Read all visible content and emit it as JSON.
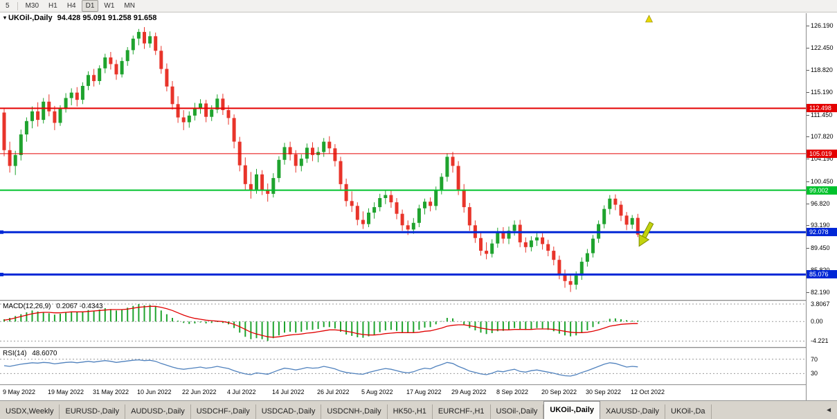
{
  "toolbar": {
    "timeframes": [
      "5",
      "M30",
      "H1",
      "H4",
      "D1",
      "W1",
      "MN"
    ],
    "active": "D1"
  },
  "chart_title": {
    "collapse_icon": "▾",
    "symbol": "UKOil-,Daily",
    "ohlc": "94.428 95.091 91.258 91.658"
  },
  "chart_data": {
    "type": "candlestick",
    "symbol": "UKOil-,Daily",
    "timeframe": "Daily",
    "price_range": [
      80.9,
      128.2
    ],
    "price_ticks": [
      "126.190",
      "122.450",
      "118.820",
      "115.190",
      "111.450",
      "107.820",
      "104.190",
      "100.450",
      "96.820",
      "93.190",
      "89.450",
      "85.820",
      "82.190"
    ],
    "date_ticks": [
      "9 May 2022",
      "19 May 2022",
      "31 May 2022",
      "10 Jun 2022",
      "22 Jun 2022",
      "4 Jul 2022",
      "14 Jul 2022",
      "26 Jul 2022",
      "5 Aug 2022",
      "17 Aug 2022",
      "29 Aug 2022",
      "8 Sep 2022",
      "20 Sep 2022",
      "30 Sep 2022",
      "12 Oct 2022"
    ],
    "date_tick_indices": [
      0,
      8,
      16,
      24,
      32,
      40,
      48,
      56,
      64,
      72,
      80,
      88,
      96,
      104,
      112
    ],
    "hlines": [
      {
        "price": 112.498,
        "label": "112.498",
        "color": "#e40000",
        "width": 2,
        "handle": false
      },
      {
        "price": 105.019,
        "label": "105.019",
        "color": "#e40000",
        "width": 1,
        "handle": false
      },
      {
        "price": 99.002,
        "label": "99.002",
        "color": "#00c22d",
        "width": 2,
        "handle": false
      },
      {
        "price": 92.078,
        "label": "92.078",
        "color": "#0027d6",
        "width": 3,
        "handle": true
      },
      {
        "price": 85.076,
        "label": "85.076",
        "color": "#0027d6",
        "width": 3,
        "handle": true
      }
    ],
    "colors": {
      "bull": "#1fa32e",
      "bear": "#e8342a",
      "macd_hist": "#1fa32e",
      "macd_signal": "#e00000",
      "rsi_line": "#4f81bd"
    },
    "annotations": {
      "up_arrow_color": "#e6d800",
      "down_arrow_color": "#c3d30e"
    },
    "candles": [
      [
        111.8,
        112.4,
        104.6,
        105.6
      ],
      [
        105.6,
        107.0,
        101.9,
        103.0
      ],
      [
        103.0,
        105.5,
        101.5,
        104.8
      ],
      [
        104.8,
        109.0,
        103.9,
        108.2
      ],
      [
        108.2,
        111.0,
        107.0,
        110.4
      ],
      [
        110.4,
        112.8,
        109.2,
        112.0
      ],
      [
        112.0,
        113.5,
        109.5,
        110.6
      ],
      [
        110.6,
        114.2,
        110.0,
        113.6
      ],
      [
        113.6,
        114.8,
        111.2,
        112.0
      ],
      [
        112.0,
        112.9,
        108.9,
        110.1
      ],
      [
        110.1,
        113.0,
        109.6,
        112.4
      ],
      [
        112.4,
        115.0,
        111.8,
        114.2
      ],
      [
        114.2,
        115.8,
        113.0,
        115.1
      ],
      [
        115.1,
        116.0,
        112.8,
        113.9
      ],
      [
        113.9,
        116.8,
        113.2,
        116.2
      ],
      [
        116.2,
        118.6,
        115.5,
        118.0
      ],
      [
        118.0,
        119.0,
        116.1,
        117.0
      ],
      [
        117.0,
        119.6,
        116.4,
        119.1
      ],
      [
        119.1,
        121.5,
        118.3,
        120.9
      ],
      [
        120.9,
        121.8,
        118.9,
        119.8
      ],
      [
        119.8,
        120.5,
        117.2,
        118.1
      ],
      [
        118.1,
        120.9,
        117.6,
        120.3
      ],
      [
        120.3,
        122.6,
        119.5,
        122.1
      ],
      [
        122.1,
        124.5,
        121.4,
        124.0
      ],
      [
        124.0,
        125.6,
        122.9,
        125.1
      ],
      [
        125.1,
        125.9,
        122.3,
        123.2
      ],
      [
        123.2,
        125.2,
        122.5,
        124.4
      ],
      [
        124.4,
        125.0,
        121.3,
        122.0
      ],
      [
        122.0,
        122.8,
        118.2,
        119.0
      ],
      [
        119.0,
        119.9,
        115.3,
        116.1
      ],
      [
        116.1,
        117.0,
        112.3,
        113.2
      ],
      [
        113.2,
        114.5,
        110.1,
        111.0
      ],
      [
        111.0,
        112.2,
        108.9,
        110.2
      ],
      [
        110.2,
        112.0,
        109.3,
        111.3
      ],
      [
        111.3,
        113.4,
        110.5,
        112.6
      ],
      [
        112.6,
        114.0,
        111.6,
        113.3
      ],
      [
        113.3,
        113.9,
        110.2,
        111.1
      ],
      [
        111.1,
        113.0,
        110.4,
        112.3
      ],
      [
        112.3,
        114.8,
        111.7,
        114.1
      ],
      [
        114.1,
        114.9,
        111.4,
        112.2
      ],
      [
        112.2,
        113.0,
        109.8,
        110.9
      ],
      [
        110.9,
        111.5,
        105.9,
        107.0
      ],
      [
        107.0,
        107.8,
        102.1,
        103.1
      ],
      [
        103.1,
        104.4,
        98.9,
        100.0
      ],
      [
        100.0,
        102.0,
        97.6,
        99.1
      ],
      [
        99.1,
        102.5,
        98.4,
        101.6
      ],
      [
        101.6,
        102.3,
        98.2,
        99.0
      ],
      [
        99.0,
        100.1,
        97.1,
        98.4
      ],
      [
        98.4,
        101.8,
        97.8,
        101.0
      ],
      [
        101.0,
        104.6,
        100.3,
        104.0
      ],
      [
        104.0,
        106.8,
        103.2,
        106.1
      ],
      [
        106.1,
        107.0,
        103.9,
        104.9
      ],
      [
        104.9,
        105.6,
        101.9,
        103.0
      ],
      [
        103.0,
        104.9,
        102.1,
        104.2
      ],
      [
        104.2,
        106.7,
        103.5,
        106.0
      ],
      [
        106.0,
        106.9,
        103.8,
        104.8
      ],
      [
        104.8,
        106.1,
        103.6,
        105.3
      ],
      [
        105.3,
        107.6,
        104.5,
        107.0
      ],
      [
        107.0,
        107.9,
        105.0,
        105.9
      ],
      [
        105.9,
        106.6,
        102.9,
        103.8
      ],
      [
        103.8,
        104.5,
        99.1,
        100.0
      ],
      [
        100.0,
        100.9,
        96.3,
        97.2
      ],
      [
        97.2,
        98.8,
        95.4,
        96.4
      ],
      [
        96.4,
        97.0,
        93.2,
        94.1
      ],
      [
        94.1,
        95.5,
        92.6,
        93.4
      ],
      [
        93.4,
        96.0,
        92.9,
        95.3
      ],
      [
        95.3,
        97.0,
        94.3,
        96.2
      ],
      [
        96.2,
        98.4,
        95.5,
        97.7
      ],
      [
        97.7,
        99.0,
        96.7,
        98.2
      ],
      [
        98.2,
        98.9,
        96.1,
        97.0
      ],
      [
        97.0,
        97.7,
        94.2,
        95.1
      ],
      [
        95.1,
        95.8,
        92.3,
        93.2
      ],
      [
        93.2,
        94.0,
        91.6,
        92.5
      ],
      [
        92.5,
        94.4,
        91.8,
        93.6
      ],
      [
        93.6,
        96.6,
        92.9,
        96.0
      ],
      [
        96.0,
        97.6,
        95.0,
        97.1
      ],
      [
        97.1,
        97.8,
        95.5,
        96.4
      ],
      [
        96.4,
        99.6,
        95.7,
        99.0
      ],
      [
        99.0,
        101.8,
        98.3,
        101.2
      ],
      [
        101.2,
        105.1,
        100.4,
        104.5
      ],
      [
        104.5,
        105.3,
        101.9,
        103.0
      ],
      [
        103.0,
        103.8,
        98.2,
        99.1
      ],
      [
        99.1,
        100.0,
        95.3,
        96.2
      ],
      [
        96.2,
        96.9,
        92.3,
        93.2
      ],
      [
        93.2,
        94.0,
        90.3,
        91.1
      ],
      [
        91.1,
        92.0,
        88.2,
        89.0
      ],
      [
        89.0,
        90.4,
        87.6,
        88.5
      ],
      [
        88.5,
        90.9,
        87.9,
        90.2
      ],
      [
        90.2,
        92.8,
        89.5,
        92.1
      ],
      [
        92.1,
        92.9,
        90.2,
        91.0
      ],
      [
        91.0,
        93.0,
        90.1,
        92.3
      ],
      [
        92.3,
        94.0,
        91.5,
        93.3
      ],
      [
        93.3,
        94.1,
        89.6,
        90.4
      ],
      [
        90.4,
        91.2,
        88.7,
        89.6
      ],
      [
        89.6,
        91.4,
        88.9,
        90.7
      ],
      [
        90.7,
        92.0,
        89.8,
        91.2
      ],
      [
        91.2,
        91.9,
        89.2,
        90.1
      ],
      [
        90.1,
        90.8,
        88.1,
        89.0
      ],
      [
        89.0,
        89.7,
        86.6,
        87.5
      ],
      [
        87.5,
        88.2,
        84.3,
        85.1
      ],
      [
        85.1,
        85.9,
        82.9,
        84.0
      ],
      [
        84.0,
        85.0,
        82.2,
        83.4
      ],
      [
        83.4,
        85.6,
        82.6,
        84.9
      ],
      [
        84.9,
        87.9,
        84.2,
        87.2
      ],
      [
        87.2,
        89.3,
        86.4,
        88.6
      ],
      [
        88.6,
        91.6,
        87.9,
        91.0
      ],
      [
        91.0,
        94.0,
        90.3,
        93.4
      ],
      [
        93.4,
        96.5,
        92.7,
        95.9
      ],
      [
        95.9,
        98.2,
        95.0,
        97.6
      ],
      [
        97.6,
        98.3,
        95.7,
        96.6
      ],
      [
        96.6,
        97.2,
        93.9,
        94.8
      ],
      [
        94.8,
        95.4,
        92.4,
        93.3
      ],
      [
        93.3,
        94.9,
        92.6,
        94.4
      ],
      [
        94.428,
        95.091,
        91.258,
        91.658
      ]
    ],
    "indicators": {
      "macd": {
        "label": "MACD(12,26,9)",
        "values_text": "0.2067 -0.4343",
        "axis_ticks": [
          "3.8067",
          "0.00",
          "-4.221"
        ],
        "axis_values": [
          3.8067,
          0,
          -4.221
        ],
        "range": [
          -5.5,
          4.4
        ],
        "hist": [
          0.5,
          0.8,
          1.2,
          1.6,
          2.0,
          2.4,
          2.2,
          2.0,
          1.8,
          1.5,
          1.7,
          2.0,
          2.2,
          2.0,
          2.2,
          2.5,
          2.3,
          2.6,
          2.9,
          2.7,
          2.4,
          2.6,
          3.0,
          3.4,
          3.8,
          3.5,
          3.6,
          3.2,
          2.4,
          1.6,
          0.8,
          0.2,
          -0.3,
          -0.5,
          -0.4,
          -0.2,
          -0.4,
          -0.3,
          -0.1,
          -0.3,
          -0.6,
          -1.4,
          -2.4,
          -3.3,
          -3.8,
          -3.6,
          -3.8,
          -4.2,
          -3.6,
          -3.0,
          -2.4,
          -2.2,
          -2.4,
          -2.2,
          -1.8,
          -1.8,
          -1.6,
          -1.2,
          -1.2,
          -1.5,
          -2.2,
          -2.8,
          -3.1,
          -3.4,
          -3.5,
          -3.2,
          -2.8,
          -2.3,
          -1.9,
          -1.8,
          -2.0,
          -2.3,
          -2.5,
          -2.3,
          -1.8,
          -1.3,
          -1.2,
          -0.6,
          0.1,
          0.8,
          0.7,
          0.0,
          -0.7,
          -1.4,
          -1.9,
          -2.4,
          -2.7,
          -2.5,
          -2.1,
          -2.0,
          -1.7,
          -1.4,
          -1.6,
          -1.8,
          -1.6,
          -1.4,
          -1.5,
          -1.8,
          -2.1,
          -2.6,
          -3.0,
          -3.2,
          -3.0,
          -2.5,
          -1.9,
          -1.2,
          -0.5,
          0.1,
          0.6,
          0.7,
          0.5,
          0.3,
          0.2,
          0.21
        ],
        "signal": [
          0.3,
          0.5,
          0.8,
          1.1,
          1.4,
          1.7,
          1.9,
          2.0,
          2.0,
          1.9,
          1.9,
          2.0,
          2.1,
          2.1,
          2.1,
          2.2,
          2.3,
          2.4,
          2.5,
          2.6,
          2.6,
          2.6,
          2.7,
          2.9,
          3.1,
          3.2,
          3.3,
          3.3,
          3.1,
          2.8,
          2.4,
          1.9,
          1.4,
          1.0,
          0.7,
          0.5,
          0.3,
          0.2,
          0.1,
          0.0,
          -0.2,
          -0.6,
          -1.1,
          -1.7,
          -2.3,
          -2.7,
          -3.0,
          -3.3,
          -3.4,
          -3.3,
          -3.1,
          -2.9,
          -2.8,
          -2.7,
          -2.5,
          -2.4,
          -2.2,
          -2.0,
          -1.8,
          -1.8,
          -1.9,
          -2.1,
          -2.3,
          -2.6,
          -2.8,
          -2.9,
          -2.9,
          -2.8,
          -2.6,
          -2.5,
          -2.4,
          -2.4,
          -2.4,
          -2.4,
          -2.3,
          -2.1,
          -2.0,
          -1.7,
          -1.4,
          -1.0,
          -0.8,
          -0.7,
          -0.7,
          -0.9,
          -1.1,
          -1.4,
          -1.6,
          -1.8,
          -1.8,
          -1.8,
          -1.8,
          -1.7,
          -1.7,
          -1.7,
          -1.7,
          -1.6,
          -1.6,
          -1.6,
          -1.7,
          -1.9,
          -2.1,
          -2.3,
          -2.4,
          -2.4,
          -2.3,
          -2.1,
          -1.8,
          -1.4,
          -1.0,
          -0.8,
          -0.6,
          -0.5,
          -0.45,
          -0.43
        ]
      },
      "rsi": {
        "label": "RSI(14)",
        "value_text": "48.6070",
        "levels": [
          70,
          30
        ],
        "range": [
          0,
          100
        ],
        "values": [
          52,
          50,
          53,
          56,
          58,
          60,
          59,
          61,
          60,
          57,
          59,
          61,
          62,
          60,
          62,
          64,
          62,
          64,
          66,
          64,
          61,
          63,
          65,
          67,
          68,
          66,
          67,
          64,
          58,
          53,
          48,
          44,
          42,
          44,
          46,
          48,
          45,
          47,
          50,
          47,
          44,
          38,
          33,
          29,
          27,
          32,
          30,
          28,
          34,
          40,
          45,
          43,
          40,
          43,
          47,
          45,
          46,
          50,
          47,
          43,
          37,
          33,
          31,
          29,
          28,
          33,
          37,
          41,
          44,
          42,
          38,
          34,
          32,
          35,
          41,
          45,
          43,
          50,
          55,
          61,
          58,
          50,
          44,
          37,
          33,
          29,
          27,
          31,
          37,
          35,
          39,
          42,
          36,
          34,
          38,
          40,
          37,
          34,
          31,
          27,
          24,
          23,
          27,
          33,
          38,
          44,
          50,
          56,
          60,
          58,
          53,
          48,
          50,
          48.6
        ]
      }
    }
  },
  "tabs": {
    "items": [
      "USDX,Weekly",
      "EURUSD-,Daily",
      "AUDUSD-,Daily",
      "USDCHF-,Daily",
      "USDCAD-,Daily",
      "USDCNH-,Daily",
      "HK50-,H1",
      "EURCHF-,H1",
      "USOil-,Daily",
      "UKOil-,Daily",
      "XAUUSD-,Daily",
      "UKOil-,Da"
    ],
    "active_index": 9,
    "scroll_left_icon": "◄"
  }
}
